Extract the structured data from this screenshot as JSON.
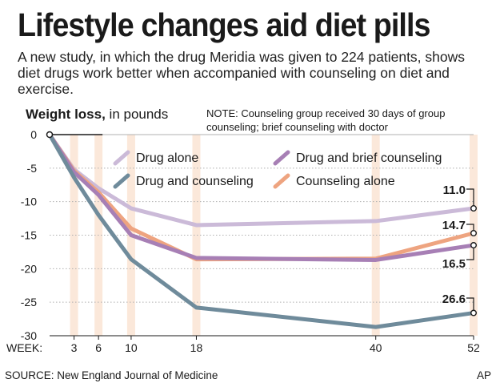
{
  "title": "Lifestyle changes aid diet pills",
  "subtitle": "A new study, in which the drug Meridia was given to 224 patients, shows diet drugs work better when accompanied with counseling on diet and exercise.",
  "ylabel_bold": "Weight loss,",
  "ylabel_rest": " in pounds",
  "note": "NOTE: Counseling group received 30 days of group counseling; brief counseling with doctor",
  "source": "SOURCE: New England Journal of Medicine",
  "credit": "AP",
  "chart_data": {
    "type": "line",
    "title": "Lifestyle changes aid diet pills",
    "ylabel": "Weight loss, in pounds",
    "xlabel": "WEEK:",
    "x_label_prefix": "WEEK:",
    "x": [
      0,
      3,
      6,
      10,
      18,
      40,
      52
    ],
    "x_ticks": [
      3,
      6,
      10,
      18,
      40,
      52
    ],
    "highlighted_weeks": [
      3,
      6,
      10,
      18,
      40,
      52
    ],
    "ylim": [
      -30,
      0
    ],
    "y_ticks": [
      0,
      -5,
      -10,
      -15,
      -20,
      -25,
      -30
    ],
    "grid": "horizontal dotted",
    "series": [
      {
        "name": "Drug alone",
        "color": "#cbbad8",
        "values": [
          0,
          -5.2,
          -8,
          -11,
          -13.5,
          -12.9,
          -11.0
        ],
        "end_label": "11.0"
      },
      {
        "name": "Drug and brief counseling",
        "color": "#a77fb5",
        "values": [
          0,
          -5.6,
          -9,
          -15,
          -18.4,
          -18.7,
          -16.5
        ],
        "end_label": "16.5"
      },
      {
        "name": "Counseling alone",
        "color": "#eea480",
        "values": [
          0,
          -5.4,
          -8.6,
          -14,
          -18.6,
          -18.5,
          -14.7
        ],
        "end_label": "14.7"
      },
      {
        "name": "Drug and counseling",
        "color": "#6f8b9b",
        "values": [
          0,
          -6.4,
          -12,
          -18.6,
          -25.8,
          -28.7,
          -26.6
        ],
        "end_label": "26.6"
      }
    ],
    "legend": [
      {
        "name": "Drug alone",
        "color": "#cbbad8"
      },
      {
        "name": "Drug and brief counseling",
        "color": "#a77fb5"
      },
      {
        "name": "Drug and counseling",
        "color": "#6f8b9b"
      },
      {
        "name": "Counseling alone",
        "color": "#eea480"
      }
    ]
  }
}
